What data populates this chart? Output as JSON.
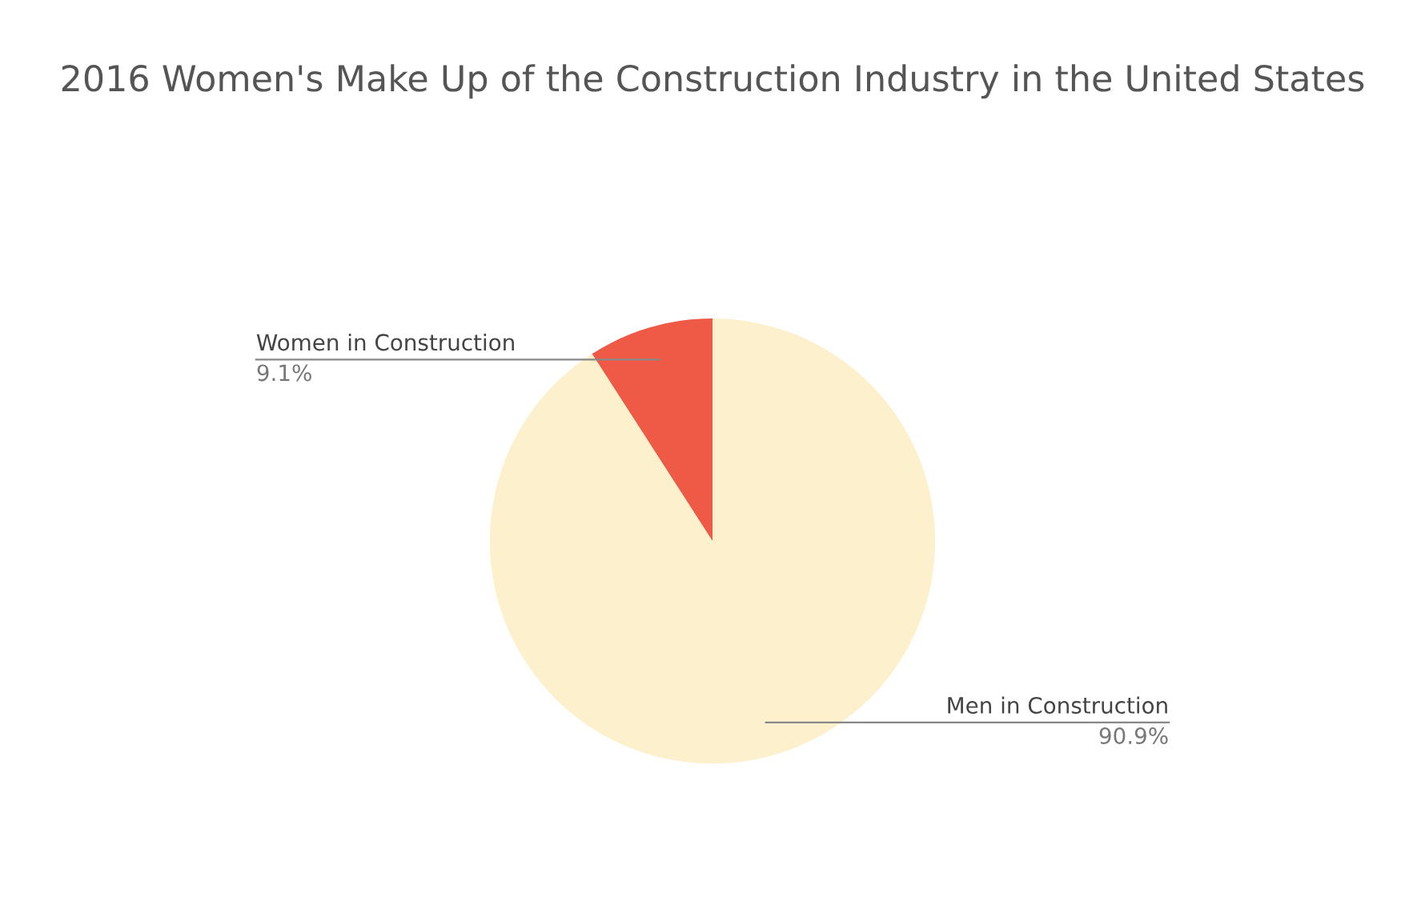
{
  "chart_data": {
    "type": "pie",
    "title": "2016 Women's Make Up of the Construction Industry in the United States",
    "categories": [
      "Women in Construction",
      "Men in Construction"
    ],
    "values": [
      9.1,
      90.9
    ],
    "colors": [
      "#ee5a45",
      "#fdf0cc"
    ],
    "value_labels": [
      "9.1%",
      "90.9%"
    ],
    "legend": false
  }
}
